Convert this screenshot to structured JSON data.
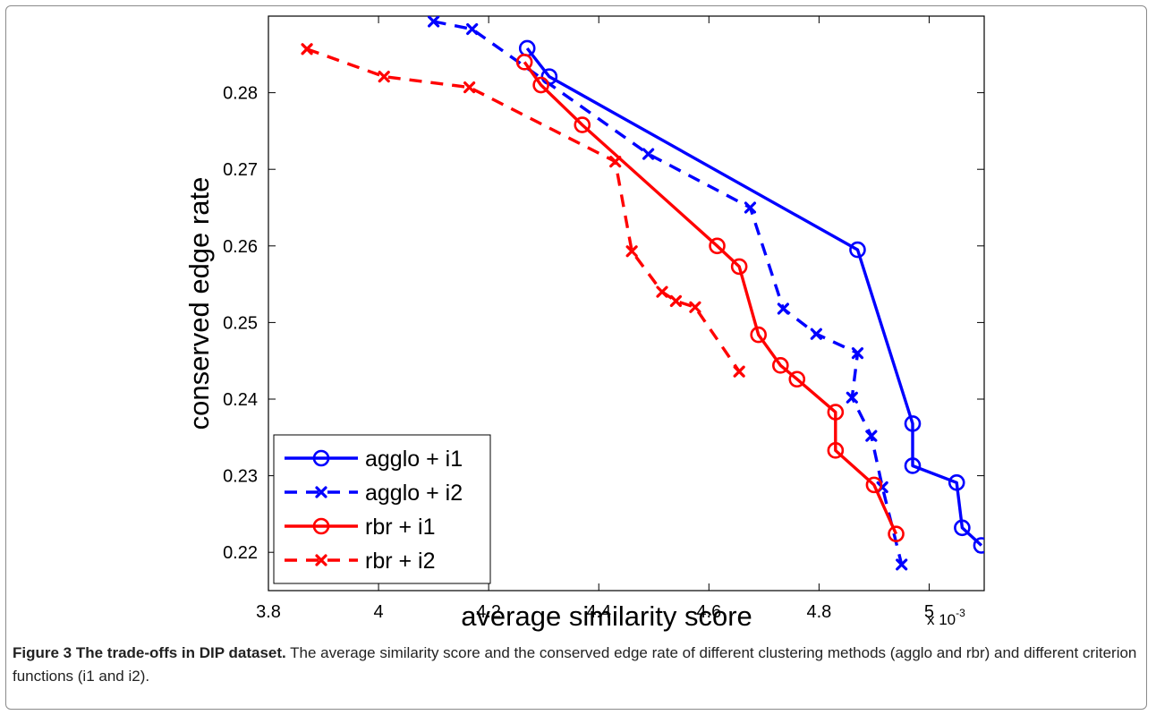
{
  "chart_data": {
    "type": "line",
    "xlabel": "average similarity score",
    "ylabel": "conserved edge rate",
    "x_exponent_label": "x 10",
    "x_exponent_power": "-3",
    "xlim": [
      3.8,
      5.1
    ],
    "ylim": [
      0.215,
      0.29
    ],
    "x_ticks": [
      3.8,
      4.0,
      4.2,
      4.4,
      4.6,
      4.8,
      5.0
    ],
    "x_tick_labels": [
      "3.8",
      "4",
      "4.2",
      "4.4",
      "4.6",
      "4.8",
      "5"
    ],
    "y_ticks": [
      0.22,
      0.23,
      0.24,
      0.25,
      0.26,
      0.27,
      0.28
    ],
    "y_tick_labels": [
      "0.22",
      "0.23",
      "0.24",
      "0.25",
      "0.26",
      "0.27",
      "0.28"
    ],
    "grid": false,
    "legend_position": "bottom-left",
    "series": [
      {
        "name": "agglo + i1",
        "color": "#0000ff",
        "line_style": "solid",
        "marker": "circle",
        "x": [
          4.27,
          4.31,
          4.87,
          4.97,
          4.97,
          5.05,
          5.06,
          5.095
        ],
        "y": [
          0.2858,
          0.2821,
          0.2595,
          0.2368,
          0.2313,
          0.2291,
          0.2232,
          0.2209
        ]
      },
      {
        "name": "agglo + i2",
        "color": "#0000ff",
        "line_style": "dashed",
        "marker": "x",
        "x": [
          4.1,
          4.17,
          4.49,
          4.675,
          4.735,
          4.795,
          4.87,
          4.86,
          4.895,
          4.915,
          4.95
        ],
        "y": [
          0.2893,
          0.2883,
          0.272,
          0.265,
          0.2518,
          0.2485,
          0.246,
          0.2402,
          0.2352,
          0.2285,
          0.2184
        ]
      },
      {
        "name": "rbr + i1",
        "color": "#ff0000",
        "line_style": "solid",
        "marker": "circle",
        "x": [
          4.265,
          4.295,
          4.37,
          4.615,
          4.655,
          4.69,
          4.73,
          4.76,
          4.83,
          4.83,
          4.9,
          4.94
        ],
        "y": [
          0.284,
          0.281,
          0.2758,
          0.26,
          0.2573,
          0.2484,
          0.2444,
          0.2426,
          0.2383,
          0.2333,
          0.2288,
          0.2224
        ]
      },
      {
        "name": "rbr + i2",
        "color": "#ff0000",
        "line_style": "dashed",
        "marker": "x",
        "x": [
          3.87,
          4.01,
          4.165,
          4.43,
          4.46,
          4.515,
          4.54,
          4.575,
          4.655
        ],
        "y": [
          0.2857,
          0.2821,
          0.2807,
          0.271,
          0.2593,
          0.254,
          0.2528,
          0.252,
          0.2436
        ]
      }
    ]
  },
  "caption": {
    "label": "Figure 3 The trade-offs in DIP dataset.",
    "text": " The average similarity score and the conserved edge rate of different clustering methods (agglo and rbr) and different criterion functions (i1 and i2)."
  }
}
